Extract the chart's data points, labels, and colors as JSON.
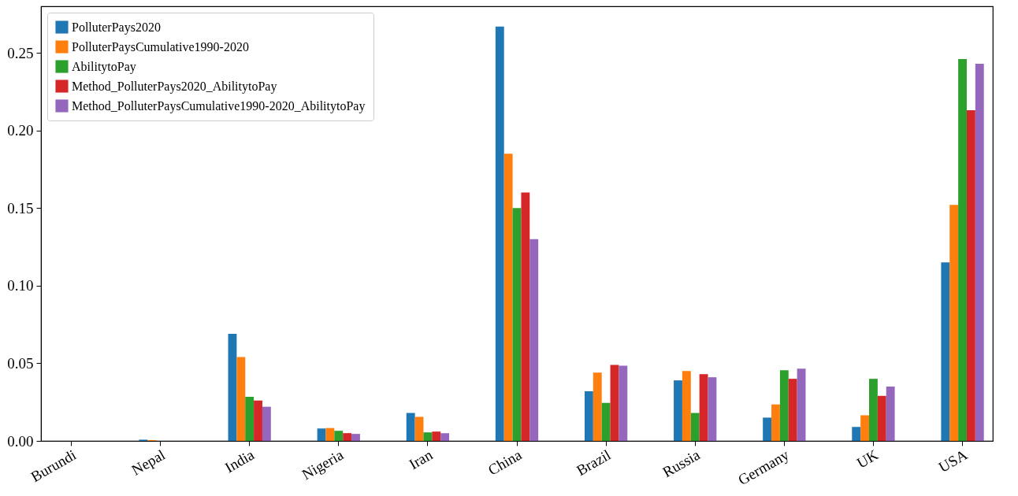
{
  "chart_data": {
    "type": "bar",
    "categories": [
      "Burundi",
      "Nepal",
      "India",
      "Nigeria",
      "Iran",
      "China",
      "Brazil",
      "Russia",
      "Germany",
      "UK",
      "USA"
    ],
    "series": [
      {
        "name": "PolluterPays2020",
        "color": "#1f77b4",
        "values": [
          0,
          0.0008,
          0.069,
          0.008,
          0.018,
          0.267,
          0.032,
          0.039,
          0.015,
          0.009,
          0.115
        ]
      },
      {
        "name": "PolluterPaysCumulative1990-2020",
        "color": "#ff7f0e",
        "values": [
          0,
          0.0005,
          0.054,
          0.0083,
          0.0155,
          0.185,
          0.044,
          0.045,
          0.0235,
          0.0165,
          0.152
        ]
      },
      {
        "name": "AbilitytoPay",
        "color": "#2ca02c",
        "values": [
          0,
          0,
          0.0284,
          0.0065,
          0.0055,
          0.15,
          0.0245,
          0.018,
          0.0455,
          0.04,
          0.246
        ]
      },
      {
        "name": "Method_PolluterPays2020_AbilitytoPay",
        "color": "#d62728",
        "values": [
          0,
          0,
          0.026,
          0.005,
          0.006,
          0.16,
          0.049,
          0.043,
          0.04,
          0.029,
          0.213
        ]
      },
      {
        "name": "Method_PolluterPaysCumulative1990-2020_AbilitytoPay",
        "color": "#9467bd",
        "values": [
          0,
          0,
          0.022,
          0.0045,
          0.005,
          0.13,
          0.0485,
          0.041,
          0.0465,
          0.035,
          0.243
        ]
      }
    ],
    "ylim": [
      0,
      0.28
    ],
    "yticks": [
      {
        "value": 0,
        "label": "0.00"
      },
      0.05,
      {
        "value": 0.1,
        "label": "0.10"
      },
      0.15,
      {
        "value": 0.2,
        "label": "0.20"
      },
      0.25
    ],
    "grid": false,
    "legend": "top left"
  }
}
